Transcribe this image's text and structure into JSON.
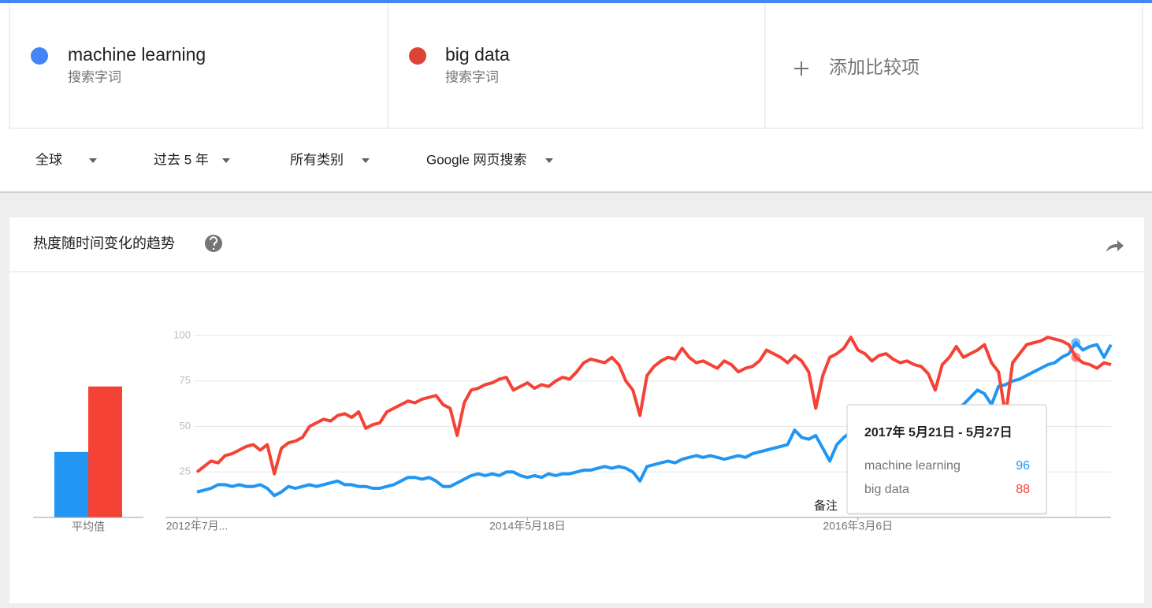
{
  "search_terms": [
    {
      "name": "machine learning",
      "type": "搜索字词",
      "color": "#4285f4"
    },
    {
      "name": "big data",
      "type": "搜索字词",
      "color": "#db4437"
    }
  ],
  "add_compare": "添加比较项",
  "filters": [
    "全球",
    "过去 5 年",
    "所有类别",
    "Google 网页搜索"
  ],
  "chart_data": [
    {
      "type": "bar",
      "categories": [
        "平均值"
      ],
      "ylim": [
        0,
        100
      ],
      "series": [
        {
          "color": "#2196f3",
          "values": [
            36
          ]
        },
        {
          "color": "#f44336",
          "values": [
            72
          ]
        }
      ]
    },
    {
      "type": "line",
      "title": "热度随时间变化的趋势",
      "xlim": [
        0,
        130
      ],
      "xticks": [
        {
          "value": 0,
          "label": "2012年7月..."
        },
        {
          "value": 47,
          "label": "2014年5月18日"
        },
        {
          "value": 94,
          "label": "2016年3月6日"
        }
      ],
      "ylim": [
        0,
        100
      ],
      "yticks": [
        25,
        50,
        75,
        100
      ],
      "grid": true,
      "annotations": [
        "备注"
      ],
      "tooltip": {
        "title": "2017年 5月21日 - 5月27日",
        "x": 125
      },
      "series": [
        {
          "name": "machine learning",
          "color": "#2196f3",
          "values": [
            14,
            15,
            16,
            18,
            18,
            17,
            18,
            17,
            17,
            18,
            16,
            12,
            14,
            17,
            16,
            17,
            18,
            17,
            18,
            19,
            20,
            18,
            18,
            17,
            17,
            16,
            16,
            17,
            18,
            20,
            22,
            22,
            21,
            22,
            20,
            17,
            17,
            19,
            21,
            23,
            24,
            23,
            24,
            23,
            25,
            25,
            23,
            22,
            23,
            22,
            24,
            23,
            24,
            24,
            25,
            26,
            26,
            27,
            28,
            27,
            28,
            27,
            25,
            20,
            28,
            29,
            30,
            31,
            30,
            32,
            33,
            34,
            33,
            34,
            33,
            32,
            33,
            34,
            33,
            35,
            36,
            37,
            38,
            39,
            40,
            48,
            44,
            43,
            45,
            38,
            31,
            40,
            44,
            47,
            46,
            45,
            47,
            49,
            48,
            50,
            51,
            52,
            51,
            50,
            53,
            54,
            55,
            57,
            60,
            62,
            66,
            70,
            68,
            62,
            72,
            73,
            75,
            76,
            78,
            80,
            82,
            84,
            85,
            88,
            90,
            96,
            92,
            94,
            95,
            88,
            95
          ]
        },
        {
          "name": "big data",
          "color": "#f44336",
          "values": [
            25,
            28,
            31,
            30,
            34,
            35,
            37,
            39,
            40,
            37,
            40,
            24,
            38,
            41,
            42,
            44,
            50,
            52,
            54,
            53,
            56,
            57,
            55,
            58,
            49,
            51,
            52,
            58,
            60,
            62,
            64,
            63,
            65,
            66,
            67,
            62,
            60,
            45,
            63,
            70,
            71,
            73,
            74,
            76,
            77,
            70,
            72,
            74,
            71,
            73,
            72,
            75,
            77,
            76,
            80,
            85,
            87,
            86,
            85,
            88,
            84,
            75,
            70,
            56,
            78,
            83,
            86,
            88,
            87,
            93,
            88,
            85,
            86,
            84,
            82,
            86,
            84,
            80,
            82,
            83,
            86,
            92,
            90,
            88,
            85,
            89,
            86,
            80,
            60,
            78,
            88,
            90,
            93,
            99,
            92,
            90,
            86,
            89,
            90,
            87,
            85,
            86,
            84,
            83,
            79,
            70,
            84,
            88,
            94,
            88,
            90,
            92,
            95,
            85,
            80,
            56,
            85,
            90,
            95,
            96,
            97,
            99,
            98,
            97,
            95,
            88,
            85,
            84,
            82,
            85,
            84
          ]
        }
      ]
    }
  ]
}
